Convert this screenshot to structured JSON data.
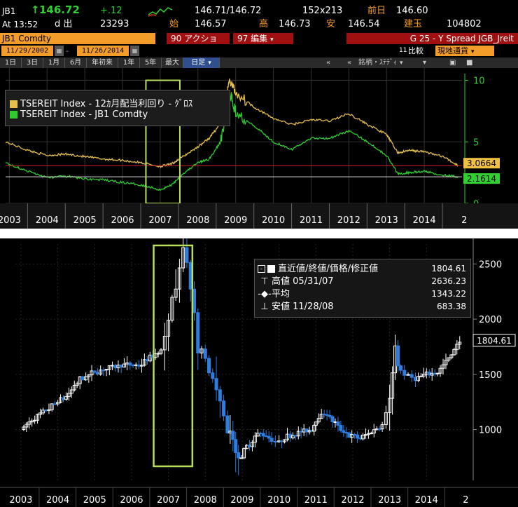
{
  "quote": {
    "ticker": "JB1",
    "last_arrow": "↑",
    "last": "146.72",
    "change": "+.12",
    "bid_ask": "146.71/146.72",
    "size": "152x213",
    "prev_close_label": "前日",
    "prev_close": "146.60",
    "time": "At 13:52",
    "d_label": "d 出",
    "volume": "23293",
    "open_label": "始",
    "open": "146.57",
    "high_label": "高",
    "high": "146.73",
    "low_label": "安",
    "low": "146.54",
    "oi_label": "建玉",
    "oi": "104802"
  },
  "toolbar": {
    "security": "JB1 Comdty",
    "actions_label": "90 アクション",
    "edit_label": "97 編集",
    "chart_title": "G 25 - Y Spread JGB_Jreit",
    "start_date": "11/29/2002",
    "end_date": "11/26/2014",
    "compare_label": "比較",
    "compare_prefix": "11",
    "currency_label": "現地通貨",
    "nav_prev": "«",
    "nav_prev2": "«",
    "tools_label": "銘柄・ｽﾃﾃﾞｨ"
  },
  "tabs": [
    "1日",
    "3日",
    "1月",
    "6月",
    "年初来",
    "1年",
    "5年",
    "最大",
    "日足"
  ],
  "active_tab": "日足",
  "chart1": {
    "legend": [
      {
        "label": "TSEREIT Index - 12ｶ月配当利回り - ｸﾞﾛｽ",
        "color": "#e6c04a"
      },
      {
        "label": "TSEREIT Index - JB1 Comdty",
        "color": "#2ecc2e"
      }
    ],
    "y_ticks": [
      "10",
      "5",
      "0"
    ],
    "last_values": [
      "3.0664",
      "2.1614"
    ],
    "x_ticks": [
      "2003",
      "2004",
      "2005",
      "2006",
      "2007",
      "2008",
      "2009",
      "2010",
      "2011",
      "2012",
      "2013",
      "2014",
      "2"
    ]
  },
  "chart2": {
    "legend": [
      {
        "label": "直近値/終値/価格/修正値",
        "value": "1804.61"
      },
      {
        "label": "高値 05/31/07",
        "value": "2636.23"
      },
      {
        "label": "平均",
        "value": "1343.22"
      },
      {
        "label": "安値 11/28/08",
        "value": "683.38"
      }
    ],
    "y_ticks": [
      "2500",
      "2000",
      "1500",
      "1000"
    ],
    "last_value": "1804.61",
    "x_ticks": [
      "2003",
      "2004",
      "2005",
      "2006",
      "2007",
      "2008",
      "2009",
      "2010",
      "2011",
      "2012",
      "2013",
      "2014",
      "2"
    ]
  },
  "chart_data": [
    {
      "type": "line",
      "title": "",
      "xlabel": "",
      "ylabel": "",
      "ylim": [
        0,
        11
      ],
      "x": [
        2002.9,
        2003.5,
        2004.0,
        2004.5,
        2005.0,
        2005.5,
        2006.0,
        2006.5,
        2007.0,
        2007.3,
        2007.6,
        2008.0,
        2008.3,
        2008.6,
        2008.85,
        2009.0,
        2009.5,
        2010.0,
        2010.5,
        2011.0,
        2011.5,
        2012.0,
        2012.5,
        2013.0,
        2013.3,
        2013.6,
        2014.0,
        2014.5,
        2014.9
      ],
      "series": [
        {
          "name": "TSEREIT Index - 12ｶ月配当利回り - ｸﾞﾛｽ",
          "values": [
            5.0,
            4.3,
            3.9,
            4.0,
            3.8,
            3.6,
            3.5,
            3.3,
            3.0,
            3.2,
            3.8,
            4.6,
            5.3,
            6.5,
            10.0,
            9.0,
            7.8,
            6.9,
            6.4,
            6.8,
            6.7,
            7.3,
            6.4,
            5.6,
            4.1,
            4.3,
            4.2,
            3.8,
            3.07
          ]
        },
        {
          "name": "TSEREIT Index - JB1 Comdty",
          "values": [
            3.3,
            2.6,
            2.1,
            2.2,
            2.0,
            1.9,
            1.7,
            1.5,
            1.1,
            1.5,
            2.4,
            3.3,
            3.6,
            5.0,
            9.0,
            7.4,
            6.3,
            5.0,
            4.4,
            5.3,
            5.3,
            5.9,
            5.0,
            3.9,
            2.4,
            2.5,
            2.6,
            2.3,
            2.16
          ]
        }
      ],
      "annotations": [
        3.0664,
        2.1614
      ]
    },
    {
      "type": "line",
      "title": "",
      "xlabel": "",
      "ylabel": "",
      "ylim": [
        540,
        2680
      ],
      "x": [
        2003.0,
        2003.3,
        2003.6,
        2004.0,
        2004.3,
        2004.6,
        2005.0,
        2005.4,
        2005.8,
        2006.2,
        2006.5,
        2006.8,
        2007.0,
        2007.2,
        2007.4,
        2007.6,
        2007.8,
        2008.0,
        2008.2,
        2008.4,
        2008.6,
        2008.9,
        2009.2,
        2009.5,
        2009.8,
        2010.0,
        2010.3,
        2010.6,
        2010.9,
        2011.0,
        2011.3,
        2011.6,
        2011.9,
        2012.2,
        2012.5,
        2012.8,
        2013.0,
        2013.15,
        2013.3,
        2013.5,
        2013.7,
        2014.0,
        2014.3,
        2014.6,
        2014.9
      ],
      "series": [
        {
          "name": "直近値/終値/価格/修正値",
          "values": [
            1000,
            1080,
            1150,
            1250,
            1320,
            1450,
            1520,
            1560,
            1590,
            1580,
            1650,
            1720,
            1950,
            2350,
            2620,
            2300,
            1800,
            1600,
            1450,
            1200,
            1000,
            750,
            860,
            980,
            900,
            880,
            950,
            980,
            1000,
            1100,
            1150,
            1010,
            950,
            920,
            980,
            1050,
            1300,
            1700,
            1520,
            1480,
            1460,
            1500,
            1520,
            1650,
            1804.61
          ]
        }
      ],
      "annotations": [
        2636.23,
        1343.22,
        683.38
      ]
    }
  ]
}
